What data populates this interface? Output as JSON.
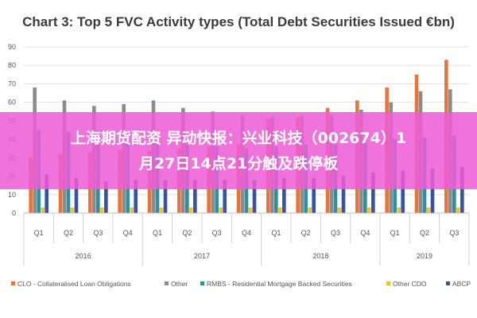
{
  "chart_data": {
    "type": "bar",
    "title": "Chart 3: Top 5 FVC Activity types (Total Debt Securities Issued €bn)",
    "ylim": [
      0,
      90
    ],
    "y_ticks": [
      "0",
      "10",
      "20",
      "30",
      "40",
      "50",
      "60",
      "70",
      "80",
      "90"
    ],
    "categories": [
      "Q1",
      "Q2",
      "Q3",
      "Q4",
      "Q1",
      "Q2",
      "Q3",
      "Q4",
      "Q1",
      "Q2",
      "Q3",
      "Q4",
      "Q1",
      "Q2",
      "Q3"
    ],
    "year_groups": [
      {
        "label": "2016",
        "span": 4
      },
      {
        "label": "2017",
        "span": 4
      },
      {
        "label": "2018",
        "span": 4
      },
      {
        "label": "2019",
        "span": 3
      }
    ],
    "series": [
      {
        "name": "CLO - Collateralised Loan Obligations",
        "color": "#e8743b",
        "values": [
          30,
          32,
          33,
          34,
          34,
          35,
          36,
          37,
          51,
          52,
          57,
          61,
          68,
          75,
          83
        ]
      },
      {
        "name": "Other",
        "color": "#8c8c8c",
        "values": [
          68,
          61,
          58,
          59,
          61,
          57,
          55,
          53,
          52,
          53,
          53,
          56,
          60,
          66,
          67
        ]
      },
      {
        "name": "RMBS - Residential Mortgage Backed Securities",
        "color": "#2e8fa3",
        "values": [
          45,
          44,
          38,
          38,
          38,
          37,
          36,
          35,
          36,
          37,
          37,
          38,
          40,
          41,
          42
        ]
      },
      {
        "name": "Other CDO",
        "color": "#f2c12e",
        "values": [
          3,
          3,
          3,
          3,
          3,
          3,
          3,
          3,
          3,
          3,
          3,
          3,
          3,
          3,
          3
        ]
      },
      {
        "name": "ABCP",
        "color": "#3a4fa8",
        "values": [
          21,
          19,
          17,
          18,
          18,
          18,
          18,
          18,
          19,
          19,
          20,
          22,
          23,
          24,
          25
        ]
      }
    ]
  },
  "overlay": {
    "line1": "上海期货配资 异动快报：兴业科技（002674）1",
    "line2": "月27日14点21分触及跌停板"
  }
}
